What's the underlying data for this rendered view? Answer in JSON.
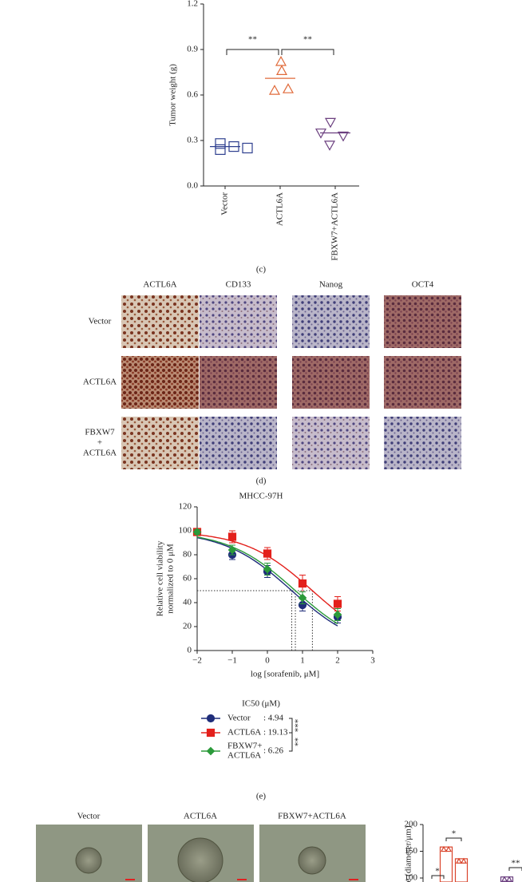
{
  "figure": {
    "panel_labels": [
      "(c)",
      "(d)",
      "(e)"
    ],
    "ihc": {
      "columns": [
        "ACTL6A",
        "CD133",
        "Nanog",
        "OCT4"
      ],
      "rows": [
        [
          "Vector"
        ],
        [
          "ACTL6A"
        ],
        [
          "FBXW7",
          "+",
          "ACTL6A"
        ]
      ]
    },
    "spheroid": {
      "columns": [
        "Vector",
        "ACTL6A",
        "FBXW7+ACTL6A"
      ]
    }
  },
  "chart_data": [
    {
      "type": "dot",
      "y_label": "Tumor weight (g)",
      "categories": [
        "Vector",
        "ACTL6A",
        "FBXW7+ACTL6A"
      ],
      "values": [
        [
          0.28,
          0.24,
          0.26,
          0.25
        ],
        [
          0.82,
          0.76,
          0.63,
          0.64
        ],
        [
          0.42,
          0.35,
          0.33,
          0.27
        ]
      ],
      "means": [
        0.26,
        0.71,
        0.35
      ],
      "colors": [
        "#2e3f8f",
        "#e06a3a",
        "#6b3f7f"
      ],
      "markers": [
        "square",
        "triangle",
        "triangle-down"
      ],
      "annotations": [
        "**",
        "**"
      ],
      "ylim": [
        0,
        1.2
      ],
      "yticks": [
        {
          "value": 0,
          "label": "0.0"
        },
        0.3,
        0.6,
        0.9,
        1.2
      ]
    },
    {
      "type": "dose_response",
      "title": "MHCC-97H",
      "x_label": "log [sorafenib, μM]",
      "y_label": [
        "Relative cell viability",
        "normalized to 0 μM"
      ],
      "x": [
        -2,
        -1,
        0,
        1,
        2
      ],
      "xlim": [
        -2,
        3
      ],
      "xticks": [
        {
          "value": -2,
          "label": "−2"
        },
        {
          "value": -1,
          "label": "−1"
        },
        0,
        1,
        2,
        3
      ],
      "ylim": [
        0,
        120
      ],
      "yticks": [
        0,
        20,
        40,
        60,
        80,
        100,
        120
      ],
      "legend_title": "IC50 (μM)",
      "series": [
        {
          "name": [
            "Vector"
          ],
          "color": "#1f2d7a",
          "marker": "circle",
          "values": [
            99,
            80,
            66,
            38,
            28
          ],
          "errors": [
            2,
            4,
            5,
            5,
            5
          ],
          "ic50": 4.94,
          "ic50_label": ": 4.94"
        },
        {
          "name": [
            "ACTL6A"
          ],
          "color": "#e3201b",
          "marker": "square",
          "values": [
            99,
            95,
            81,
            56,
            39
          ],
          "errors": [
            2,
            5,
            5,
            7,
            6
          ],
          "ic50": 19.13,
          "ic50_label": ": 19.13"
        },
        {
          "name": [
            "FBXW7+",
            "ACTL6A"
          ],
          "color": "#2b9a3a",
          "marker": "diamond",
          "values": [
            99,
            84,
            68,
            44,
            30
          ],
          "errors": [
            2,
            4,
            5,
            5,
            5
          ],
          "ic50": 6.26,
          "ic50_label": ": 6.26"
        }
      ],
      "annotations": [
        "***",
        "**"
      ]
    },
    {
      "type": "bar",
      "y_label": "e (diameter/μm)",
      "values": [
        158,
        136,
        102
      ],
      "colors": [
        "#d9442b",
        "#d9442b",
        "#6b3f7f"
      ],
      "annotations": [
        "*",
        "*",
        "**"
      ],
      "ylim": [
        100,
        200
      ],
      "yticks": [
        100,
        150,
        200
      ]
    }
  ]
}
